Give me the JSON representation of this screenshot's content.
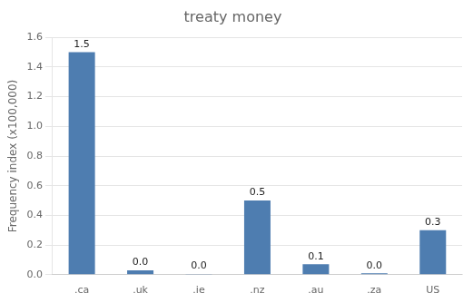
{
  "chart_data": {
    "type": "bar",
    "title": "treaty money",
    "categories": [
      ".ca",
      ".uk",
      ".ie",
      ".nz",
      ".au",
      ".za",
      "US"
    ],
    "values": [
      1.5,
      0.03,
      0.005,
      0.5,
      0.07,
      0.01,
      0.3
    ],
    "value_labels": [
      "1.5",
      "0.0",
      "0.0",
      "0.5",
      "0.1",
      "0.0",
      "0.3"
    ],
    "data_labels": true,
    "color": "#4e7db0",
    "ylabel": "Frequency index (x100,000)",
    "ylim": [
      0,
      1.6
    ],
    "yticks": [
      {
        "value": 0,
        "label": "0.0"
      },
      0.2,
      0.4,
      0.6,
      0.8,
      {
        "value": 1,
        "label": "1.0"
      },
      1.2,
      1.4,
      1.6
    ],
    "grid": true
  }
}
